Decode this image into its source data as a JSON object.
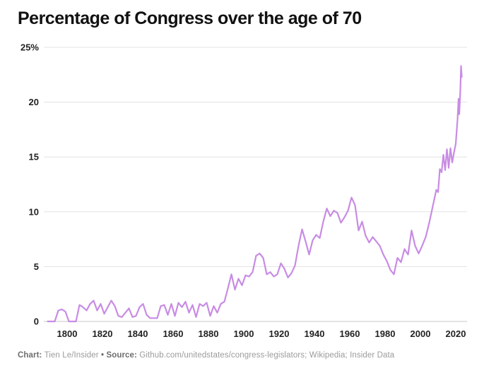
{
  "title": "Percentage of Congress over the age of 70",
  "footer": {
    "chart_label": "Chart:",
    "chart_value": "Tien Le/Insider",
    "separator": "•",
    "source_label": "Source:",
    "source_value": "Github.com/unitedstates/congress-legislators; Wikipedia; Insider Data"
  },
  "chart_data": {
    "type": "line",
    "title": "Percentage of Congress over the age of 70",
    "xlabel": "",
    "ylabel": "",
    "xlim": [
      1787,
      2025
    ],
    "ylim": [
      0,
      25
    ],
    "grid": "horizontal-only",
    "legend": "none",
    "colors": {
      "line": "#c88ce4",
      "grid": "#e3e3e3",
      "axis": "#c9c9c9",
      "tick_text": "#222222"
    },
    "yticks": [
      {
        "value": 25,
        "label": "25%"
      },
      {
        "value": 20,
        "label": "20"
      },
      {
        "value": 15,
        "label": "15"
      },
      {
        "value": 10,
        "label": "10"
      },
      {
        "value": 5,
        "label": "5"
      },
      {
        "value": 0,
        "label": "0"
      }
    ],
    "xticks": [
      {
        "year": 1800,
        "label": "1800"
      },
      {
        "year": 1820,
        "label": "1820"
      },
      {
        "year": 1840,
        "label": "1840"
      },
      {
        "year": 1860,
        "label": "1860"
      },
      {
        "year": 1880,
        "label": "1880"
      },
      {
        "year": 1900,
        "label": "1900"
      },
      {
        "year": 1920,
        "label": "1920"
      },
      {
        "year": 1940,
        "label": "1940"
      },
      {
        "year": 1960,
        "label": "1960"
      },
      {
        "year": 1980,
        "label": "1980"
      },
      {
        "year": 2000,
        "label": "2000"
      },
      {
        "year": 2020,
        "label": "2020"
      }
    ],
    "series_name": "Percentage of Congress over age 70",
    "points": [
      [
        1789,
        0
      ],
      [
        1791,
        0
      ],
      [
        1793,
        0
      ],
      [
        1795,
        1.0
      ],
      [
        1797,
        1.1
      ],
      [
        1799,
        0.9
      ],
      [
        1801,
        0
      ],
      [
        1803,
        0
      ],
      [
        1805,
        0
      ],
      [
        1807,
        1.5
      ],
      [
        1809,
        1.3
      ],
      [
        1811,
        1.0
      ],
      [
        1813,
        1.6
      ],
      [
        1815,
        1.9
      ],
      [
        1817,
        1.0
      ],
      [
        1819,
        1.6
      ],
      [
        1821,
        0.7
      ],
      [
        1823,
        1.3
      ],
      [
        1825,
        1.9
      ],
      [
        1827,
        1.4
      ],
      [
        1829,
        0.5
      ],
      [
        1831,
        0.4
      ],
      [
        1833,
        0.8
      ],
      [
        1835,
        1.2
      ],
      [
        1837,
        0.4
      ],
      [
        1839,
        0.5
      ],
      [
        1841,
        1.3
      ],
      [
        1843,
        1.6
      ],
      [
        1845,
        0.6
      ],
      [
        1847,
        0.3
      ],
      [
        1849,
        0.3
      ],
      [
        1851,
        0.3
      ],
      [
        1853,
        1.4
      ],
      [
        1855,
        1.5
      ],
      [
        1857,
        0.6
      ],
      [
        1859,
        1.6
      ],
      [
        1861,
        0.5
      ],
      [
        1863,
        1.7
      ],
      [
        1865,
        1.3
      ],
      [
        1867,
        1.8
      ],
      [
        1869,
        0.8
      ],
      [
        1871,
        1.5
      ],
      [
        1873,
        0.4
      ],
      [
        1875,
        1.6
      ],
      [
        1877,
        1.4
      ],
      [
        1879,
        1.7
      ],
      [
        1881,
        0.5
      ],
      [
        1883,
        1.4
      ],
      [
        1885,
        0.8
      ],
      [
        1887,
        1.6
      ],
      [
        1889,
        1.8
      ],
      [
        1891,
        3.0
      ],
      [
        1893,
        4.3
      ],
      [
        1895,
        2.9
      ],
      [
        1897,
        3.9
      ],
      [
        1899,
        3.3
      ],
      [
        1901,
        4.2
      ],
      [
        1903,
        4.1
      ],
      [
        1905,
        4.5
      ],
      [
        1907,
        6.0
      ],
      [
        1909,
        6.2
      ],
      [
        1911,
        5.8
      ],
      [
        1913,
        4.3
      ],
      [
        1915,
        4.5
      ],
      [
        1917,
        4.1
      ],
      [
        1919,
        4.3
      ],
      [
        1921,
        5.3
      ],
      [
        1923,
        4.8
      ],
      [
        1925,
        4.0
      ],
      [
        1927,
        4.4
      ],
      [
        1929,
        5.1
      ],
      [
        1931,
        6.9
      ],
      [
        1933,
        8.4
      ],
      [
        1935,
        7.3
      ],
      [
        1937,
        6.1
      ],
      [
        1939,
        7.4
      ],
      [
        1941,
        7.9
      ],
      [
        1943,
        7.6
      ],
      [
        1945,
        9.1
      ],
      [
        1947,
        10.3
      ],
      [
        1949,
        9.6
      ],
      [
        1951,
        10.1
      ],
      [
        1953,
        9.9
      ],
      [
        1955,
        9.0
      ],
      [
        1957,
        9.5
      ],
      [
        1959,
        10.1
      ],
      [
        1961,
        11.3
      ],
      [
        1963,
        10.6
      ],
      [
        1965,
        8.3
      ],
      [
        1967,
        9.1
      ],
      [
        1969,
        7.8
      ],
      [
        1971,
        7.2
      ],
      [
        1973,
        7.7
      ],
      [
        1975,
        7.3
      ],
      [
        1977,
        6.9
      ],
      [
        1979,
        6.1
      ],
      [
        1981,
        5.5
      ],
      [
        1983,
        4.7
      ],
      [
        1985,
        4.3
      ],
      [
        1987,
        5.8
      ],
      [
        1989,
        5.4
      ],
      [
        1991,
        6.6
      ],
      [
        1993,
        6.1
      ],
      [
        1995,
        8.3
      ],
      [
        1997,
        6.9
      ],
      [
        1999,
        6.2
      ],
      [
        2001,
        6.9
      ],
      [
        2003,
        7.7
      ],
      [
        2005,
        9.0
      ],
      [
        2007,
        10.5
      ],
      [
        2009,
        12.0
      ],
      [
        2010,
        11.8
      ],
      [
        2011,
        13.9
      ],
      [
        2012,
        13.6
      ],
      [
        2013,
        15.2
      ],
      [
        2014,
        13.8
      ],
      [
        2015,
        15.7
      ],
      [
        2016,
        14.0
      ],
      [
        2017,
        15.8
      ],
      [
        2018,
        14.5
      ],
      [
        2019,
        15.4
      ],
      [
        2020,
        16.2
      ],
      [
        2021,
        18.4
      ],
      [
        2021.6,
        20.3
      ],
      [
        2022,
        18.9
      ],
      [
        2022.6,
        21.1
      ],
      [
        2023,
        23.3
      ],
      [
        2023.4,
        22.3
      ]
    ]
  }
}
